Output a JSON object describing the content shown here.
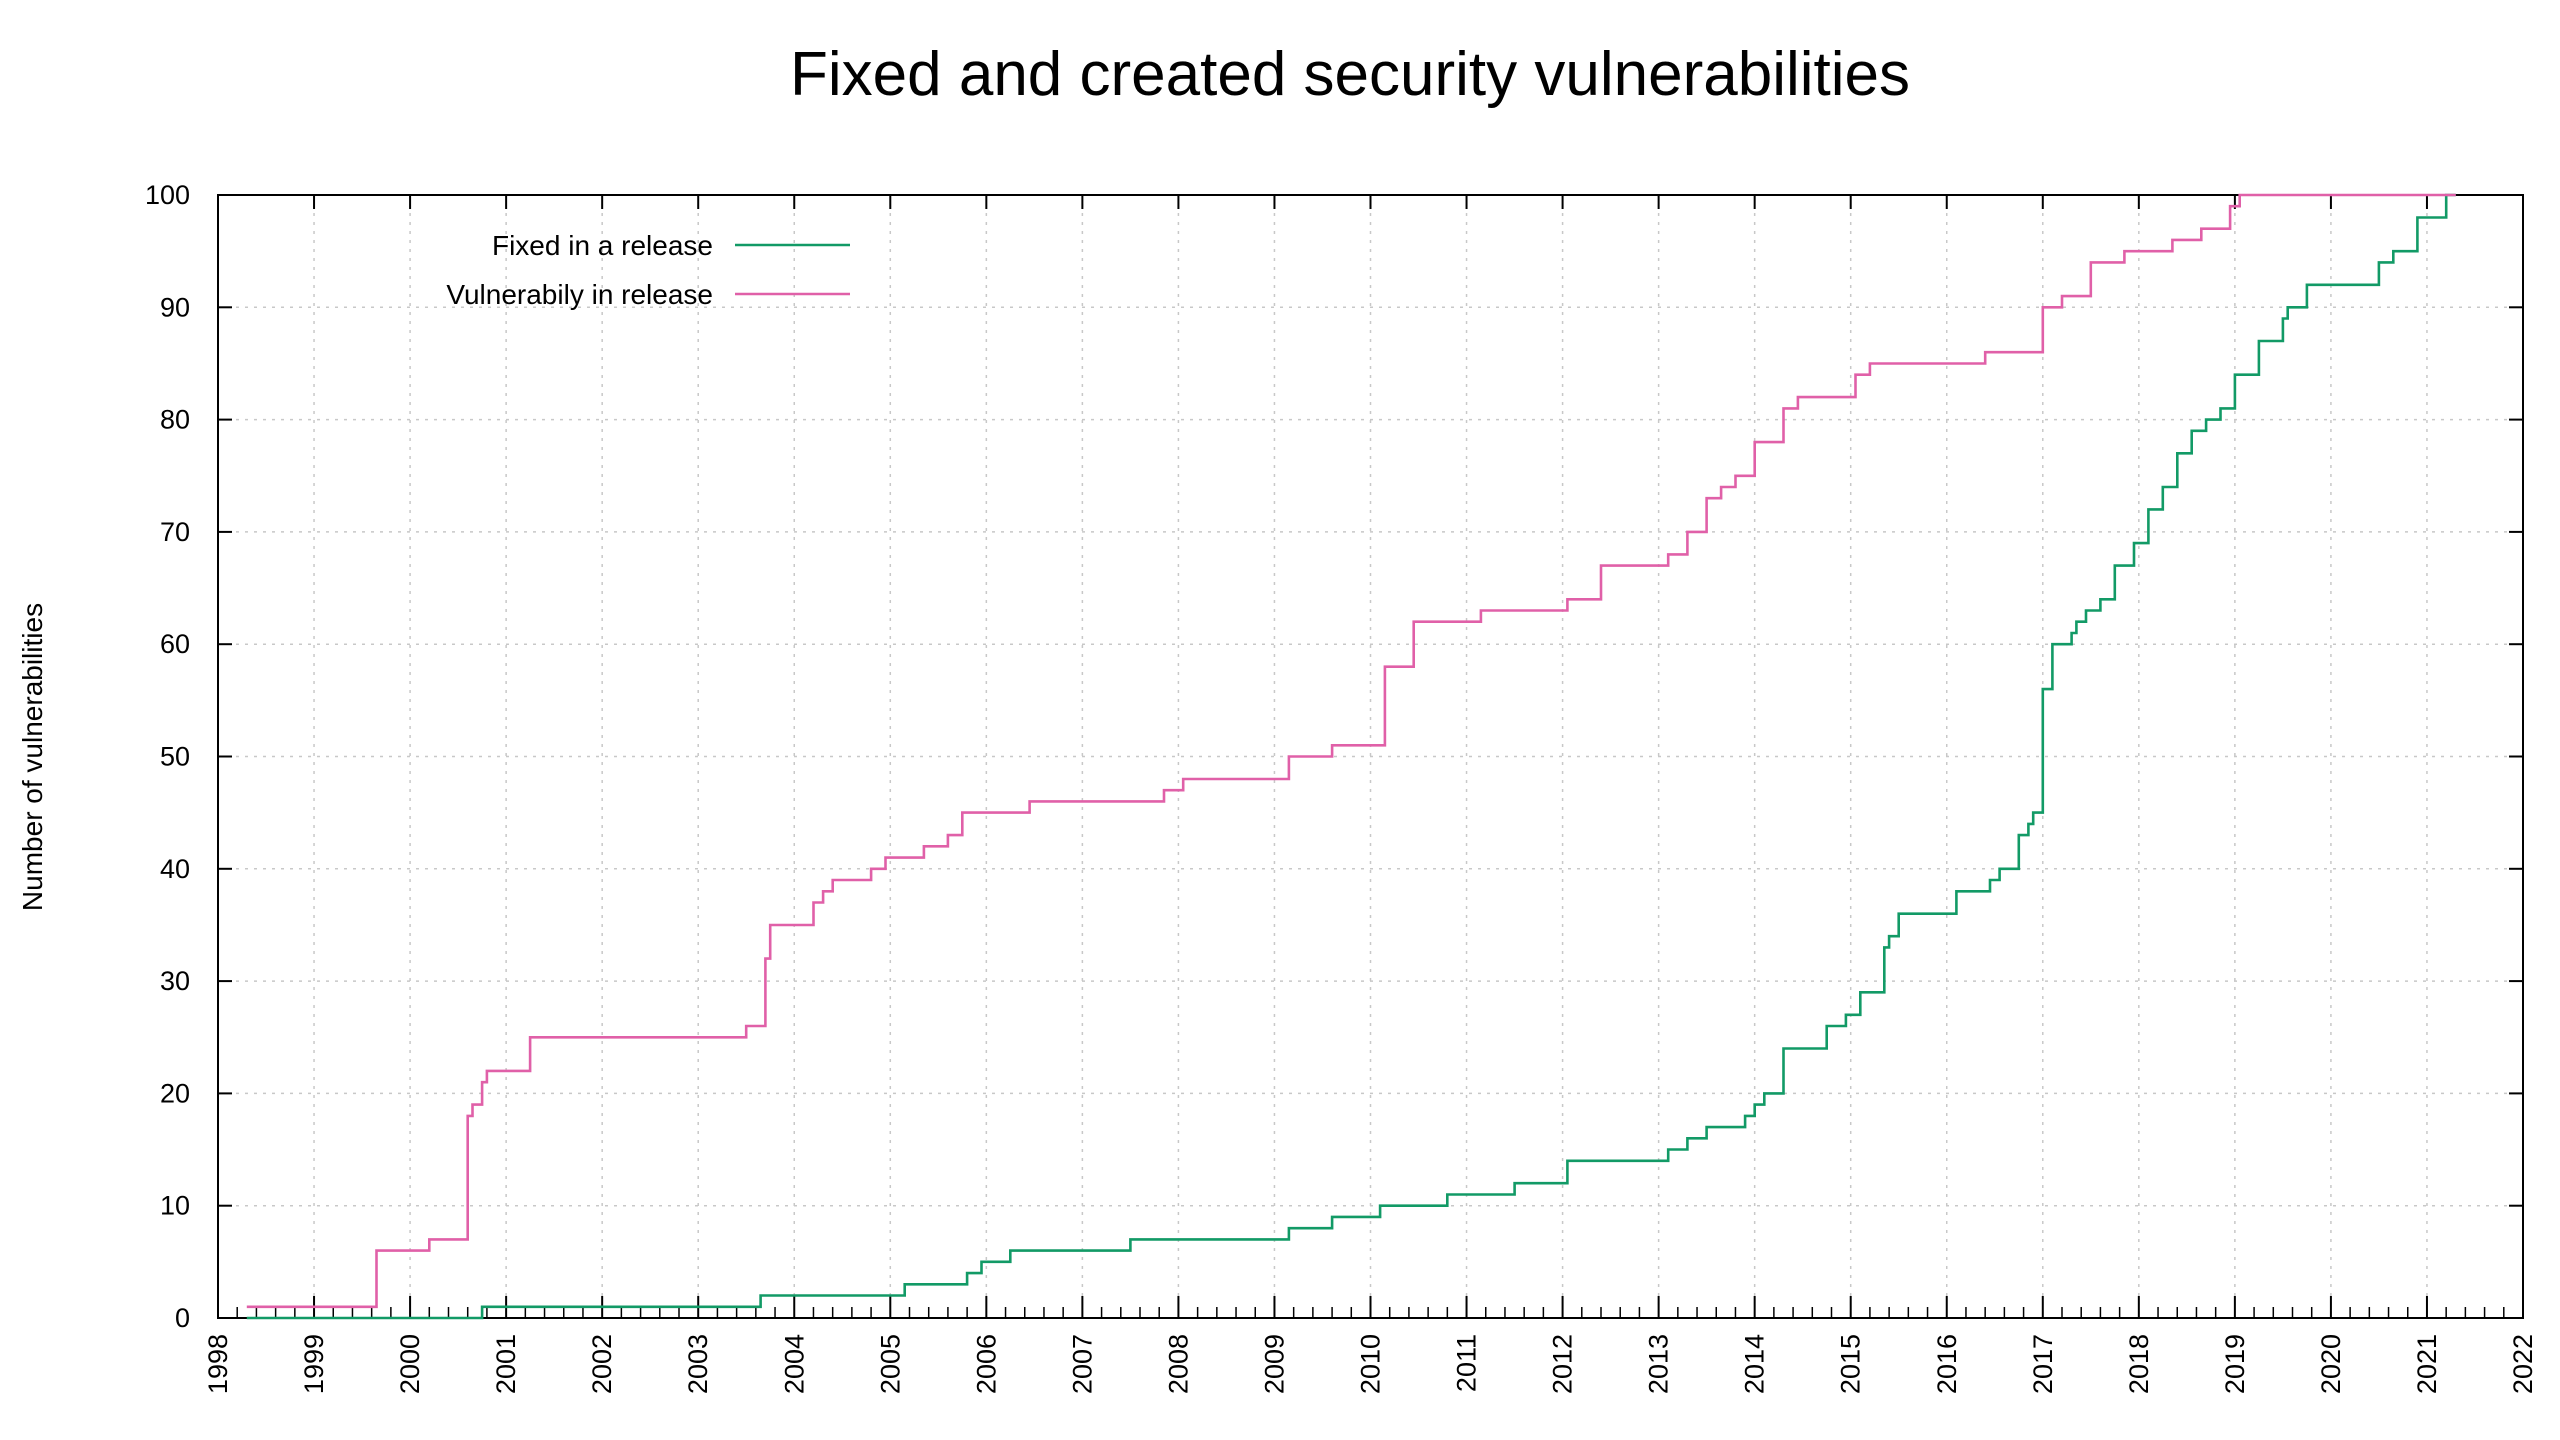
{
  "chart_data": {
    "type": "line",
    "title": "Fixed and created security vulnerabilities",
    "xlabel": "",
    "ylabel": "Number of vulnerabilities",
    "xlim": [
      1998,
      2022
    ],
    "ylim": [
      0,
      100
    ],
    "xticks": [
      "1998",
      "1999",
      "2000",
      "2001",
      "2002",
      "2003",
      "2004",
      "2005",
      "2006",
      "2007",
      "2008",
      "2009",
      "2010",
      "2011",
      "2012",
      "2013",
      "2014",
      "2015",
      "2016",
      "2017",
      "2018",
      "2019",
      "2020",
      "2021",
      "2022"
    ],
    "yticks": [
      "0",
      "10",
      "20",
      "30",
      "40",
      "50",
      "60",
      "70",
      "80",
      "90",
      "100"
    ],
    "grid": true,
    "step": true,
    "legend_position": "top-left",
    "series": [
      {
        "name": "Fixed in a release",
        "color": "#129a66",
        "points": [
          [
            1998.3,
            0
          ],
          [
            2000.75,
            1
          ],
          [
            2003.65,
            2
          ],
          [
            2005.15,
            3
          ],
          [
            2005.8,
            4
          ],
          [
            2005.95,
            5
          ],
          [
            2006.25,
            6
          ],
          [
            2007.5,
            7
          ],
          [
            2009.15,
            8
          ],
          [
            2009.6,
            9
          ],
          [
            2010.1,
            10
          ],
          [
            2010.8,
            11
          ],
          [
            2011.5,
            12
          ],
          [
            2012.05,
            14
          ],
          [
            2013.1,
            15
          ],
          [
            2013.3,
            16
          ],
          [
            2013.5,
            17
          ],
          [
            2013.9,
            18
          ],
          [
            2014.0,
            19
          ],
          [
            2014.1,
            20
          ],
          [
            2014.3,
            24
          ],
          [
            2014.75,
            26
          ],
          [
            2014.95,
            27
          ],
          [
            2015.1,
            29
          ],
          [
            2015.35,
            33
          ],
          [
            2015.4,
            34
          ],
          [
            2015.5,
            36
          ],
          [
            2016.1,
            38
          ],
          [
            2016.45,
            39
          ],
          [
            2016.55,
            40
          ],
          [
            2016.75,
            43
          ],
          [
            2016.85,
            44
          ],
          [
            2016.9,
            45
          ],
          [
            2017.0,
            56
          ],
          [
            2017.1,
            60
          ],
          [
            2017.3,
            61
          ],
          [
            2017.35,
            62
          ],
          [
            2017.45,
            63
          ],
          [
            2017.6,
            64
          ],
          [
            2017.75,
            67
          ],
          [
            2017.95,
            69
          ],
          [
            2018.1,
            72
          ],
          [
            2018.25,
            74
          ],
          [
            2018.4,
            77
          ],
          [
            2018.55,
            79
          ],
          [
            2018.7,
            80
          ],
          [
            2018.85,
            81
          ],
          [
            2019.0,
            84
          ],
          [
            2019.25,
            87
          ],
          [
            2019.5,
            89
          ],
          [
            2019.55,
            90
          ],
          [
            2019.75,
            92
          ],
          [
            2020.5,
            94
          ],
          [
            2020.65,
            95
          ],
          [
            2020.9,
            98
          ],
          [
            2021.2,
            100
          ],
          [
            2021.3,
            100
          ]
        ]
      },
      {
        "name": "Vulnerabily in release",
        "color": "#e060a8",
        "points": [
          [
            1998.3,
            1
          ],
          [
            1999.65,
            6
          ],
          [
            2000.2,
            7
          ],
          [
            2000.6,
            18
          ],
          [
            2000.65,
            19
          ],
          [
            2000.75,
            21
          ],
          [
            2000.8,
            22
          ],
          [
            2001.25,
            25
          ],
          [
            2003.5,
            26
          ],
          [
            2003.7,
            32
          ],
          [
            2003.75,
            35
          ],
          [
            2004.2,
            37
          ],
          [
            2004.3,
            38
          ],
          [
            2004.4,
            39
          ],
          [
            2004.8,
            40
          ],
          [
            2004.95,
            41
          ],
          [
            2005.35,
            42
          ],
          [
            2005.6,
            43
          ],
          [
            2005.75,
            45
          ],
          [
            2006.45,
            46
          ],
          [
            2007.85,
            47
          ],
          [
            2008.05,
            48
          ],
          [
            2009.15,
            50
          ],
          [
            2009.6,
            51
          ],
          [
            2010.15,
            58
          ],
          [
            2010.45,
            62
          ],
          [
            2011.15,
            63
          ],
          [
            2012.05,
            64
          ],
          [
            2012.4,
            67
          ],
          [
            2013.1,
            68
          ],
          [
            2013.3,
            70
          ],
          [
            2013.5,
            73
          ],
          [
            2013.65,
            74
          ],
          [
            2013.8,
            75
          ],
          [
            2014.0,
            78
          ],
          [
            2014.3,
            81
          ],
          [
            2014.45,
            82
          ],
          [
            2015.05,
            84
          ],
          [
            2015.2,
            85
          ],
          [
            2016.4,
            86
          ],
          [
            2017.0,
            90
          ],
          [
            2017.2,
            91
          ],
          [
            2017.5,
            94
          ],
          [
            2017.85,
            95
          ],
          [
            2018.35,
            96
          ],
          [
            2018.65,
            97
          ],
          [
            2018.95,
            99
          ],
          [
            2019.05,
            100
          ],
          [
            2021.3,
            100
          ]
        ]
      }
    ]
  }
}
